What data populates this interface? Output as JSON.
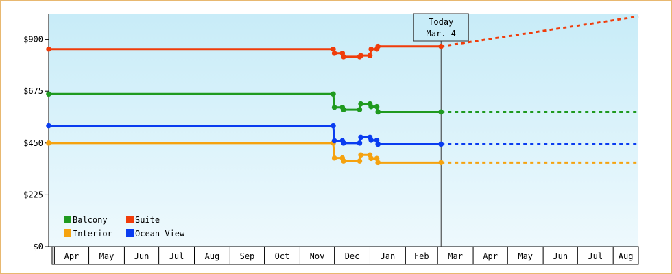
{
  "chart_data": {
    "type": "line",
    "title": "",
    "xlabel": "",
    "ylabel": "",
    "ylim": [
      0,
      1012
    ],
    "y_ticks": [
      {
        "value": 0,
        "label": "$0"
      },
      {
        "value": 225,
        "label": "$225"
      },
      {
        "value": 450,
        "label": "$450"
      },
      {
        "value": 675,
        "label": "$675"
      },
      {
        "value": 900,
        "label": "$900"
      }
    ],
    "x_range": [
      "2024-03-27",
      "2025-08-23"
    ],
    "x_month_labels": [
      {
        "label": "Apr",
        "start": "2024-04-01"
      },
      {
        "label": "May",
        "start": "2024-05-01"
      },
      {
        "label": "Jun",
        "start": "2024-06-01"
      },
      {
        "label": "Jul",
        "start": "2024-07-01"
      },
      {
        "label": "Aug",
        "start": "2024-08-01"
      },
      {
        "label": "Sep",
        "start": "2024-09-01"
      },
      {
        "label": "Oct",
        "start": "2024-10-01"
      },
      {
        "label": "Nov",
        "start": "2024-11-01"
      },
      {
        "label": "Dec",
        "start": "2024-12-01"
      },
      {
        "label": "Jan",
        "start": "2025-01-01"
      },
      {
        "label": "Feb",
        "start": "2025-02-01"
      },
      {
        "label": "Mar",
        "start": "2025-03-01"
      },
      {
        "label": "Apr",
        "start": "2025-04-01"
      },
      {
        "label": "May",
        "start": "2025-05-01"
      },
      {
        "label": "Jun",
        "start": "2025-06-01"
      },
      {
        "label": "Jul",
        "start": "2025-07-01"
      },
      {
        "label": "Aug",
        "start": "2025-08-01"
      }
    ],
    "today": {
      "line1": "Today",
      "line2": "Mar. 4",
      "date": "2025-03-04"
    },
    "legend_position": "bottom-left",
    "grid": false,
    "series": [
      {
        "name": "Balcony",
        "color": "#1f9a1f",
        "points": [
          [
            "2024-03-27",
            663
          ],
          [
            "2024-11-30",
            663
          ],
          [
            "2024-12-01",
            605
          ],
          [
            "2024-12-08",
            605
          ],
          [
            "2024-12-09",
            595
          ],
          [
            "2024-12-23",
            595
          ],
          [
            "2024-12-24",
            620
          ],
          [
            "2025-01-01",
            620
          ],
          [
            "2025-01-02",
            608
          ],
          [
            "2025-01-07",
            608
          ],
          [
            "2025-01-08",
            585
          ],
          [
            "2025-03-04",
            585
          ]
        ],
        "projection": [
          [
            "2025-03-04",
            585
          ],
          [
            "2025-08-23",
            585
          ]
        ]
      },
      {
        "name": "Suite",
        "color": "#f03c0a",
        "points": [
          [
            "2024-03-27",
            858
          ],
          [
            "2024-11-30",
            858
          ],
          [
            "2024-12-01",
            840
          ],
          [
            "2024-12-08",
            840
          ],
          [
            "2024-12-09",
            825
          ],
          [
            "2024-12-23",
            825
          ],
          [
            "2024-12-24",
            830
          ],
          [
            "2025-01-01",
            830
          ],
          [
            "2025-01-02",
            858
          ],
          [
            "2025-01-07",
            858
          ],
          [
            "2025-01-08",
            870
          ],
          [
            "2025-03-04",
            870
          ]
        ],
        "projection": [
          [
            "2025-03-04",
            870
          ],
          [
            "2025-08-23",
            1000
          ]
        ]
      },
      {
        "name": "Interior",
        "color": "#f5a20f",
        "points": [
          [
            "2024-03-27",
            450
          ],
          [
            "2024-11-30",
            450
          ],
          [
            "2024-12-01",
            385
          ],
          [
            "2024-12-08",
            385
          ],
          [
            "2024-12-09",
            372
          ],
          [
            "2024-12-23",
            372
          ],
          [
            "2024-12-24",
            398
          ],
          [
            "2025-01-01",
            398
          ],
          [
            "2025-01-02",
            383
          ],
          [
            "2025-01-07",
            383
          ],
          [
            "2025-01-08",
            365
          ],
          [
            "2025-03-04",
            365
          ]
        ],
        "projection": [
          [
            "2025-03-04",
            365
          ],
          [
            "2025-08-23",
            365
          ]
        ]
      },
      {
        "name": "Ocean View",
        "color": "#0a3cf0",
        "points": [
          [
            "2024-03-27",
            525
          ],
          [
            "2024-11-30",
            525
          ],
          [
            "2024-12-01",
            460
          ],
          [
            "2024-12-08",
            460
          ],
          [
            "2024-12-09",
            450
          ],
          [
            "2024-12-23",
            450
          ],
          [
            "2024-12-24",
            475
          ],
          [
            "2025-01-01",
            475
          ],
          [
            "2025-01-02",
            462
          ],
          [
            "2025-01-07",
            462
          ],
          [
            "2025-01-08",
            445
          ],
          [
            "2025-03-04",
            445
          ]
        ],
        "projection": [
          [
            "2025-03-04",
            445
          ],
          [
            "2025-08-23",
            445
          ]
        ]
      }
    ]
  }
}
